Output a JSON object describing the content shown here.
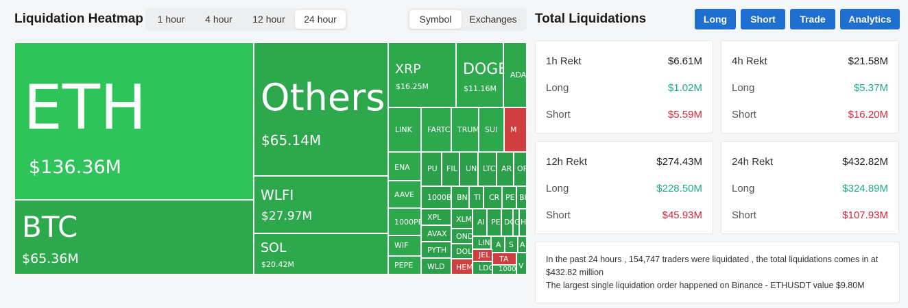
{
  "heatmap": {
    "title": "Liquidation Heatmap",
    "time_options": [
      "1 hour",
      "4 hour",
      "12 hour",
      "24 hour"
    ],
    "time_selected": "24 hour",
    "view_options": [
      "Symbol",
      "Exchanges"
    ],
    "view_selected": "Symbol",
    "colors": {
      "long_dominant": "#2ea84d",
      "long_bright": "#2fc45a",
      "short_dominant": "#cf3f3f"
    },
    "tiles": [
      {
        "symbol": "ETH",
        "amount": "$136.36M"
      },
      {
        "symbol": "BTC",
        "amount": "$65.36M"
      },
      {
        "symbol": "Others",
        "amount": "$65.14M"
      },
      {
        "symbol": "WLFI",
        "amount": "$27.97M"
      },
      {
        "symbol": "SOL",
        "amount": "$20.42M"
      },
      {
        "symbol": "XRP",
        "amount": "$16.25M"
      },
      {
        "symbol": "DOGE",
        "amount": "$11.16M"
      },
      {
        "symbol": "ADA",
        "amount": ""
      },
      {
        "symbol": "LINK",
        "amount": ""
      },
      {
        "symbol": "FARTC",
        "amount": ""
      },
      {
        "symbol": "TRUM",
        "amount": ""
      },
      {
        "symbol": "SUI",
        "amount": ""
      },
      {
        "symbol": "M",
        "amount": ""
      },
      {
        "symbol": "ENA",
        "amount": ""
      },
      {
        "symbol": "PU",
        "amount": ""
      },
      {
        "symbol": "FIL",
        "amount": ""
      },
      {
        "symbol": "UN",
        "amount": ""
      },
      {
        "symbol": "LTC",
        "amount": ""
      },
      {
        "symbol": "AR",
        "amount": ""
      },
      {
        "symbol": "OP",
        "amount": ""
      },
      {
        "symbol": "AAVE",
        "amount": ""
      },
      {
        "symbol": "1000B",
        "amount": ""
      },
      {
        "symbol": "BN",
        "amount": ""
      },
      {
        "symbol": "TI",
        "amount": ""
      },
      {
        "symbol": "CR",
        "amount": ""
      },
      {
        "symbol": "PE",
        "amount": ""
      },
      {
        "symbol": "BI",
        "amount": ""
      },
      {
        "symbol": "1000PE",
        "amount": ""
      },
      {
        "symbol": "XPL",
        "amount": ""
      },
      {
        "symbol": "XLM",
        "amount": ""
      },
      {
        "symbol": "AI",
        "amount": ""
      },
      {
        "symbol": "PE",
        "amount": ""
      },
      {
        "symbol": "DO",
        "amount": ""
      },
      {
        "symbol": "G",
        "amount": ""
      },
      {
        "symbol": "HY",
        "amount": ""
      },
      {
        "symbol": "AVAX",
        "amount": ""
      },
      {
        "symbol": "OND",
        "amount": ""
      },
      {
        "symbol": "WIF",
        "amount": ""
      },
      {
        "symbol": "PYTH",
        "amount": ""
      },
      {
        "symbol": "DOL",
        "amount": ""
      },
      {
        "symbol": "LIN",
        "amount": ""
      },
      {
        "symbol": "A",
        "amount": ""
      },
      {
        "symbol": "S",
        "amount": ""
      },
      {
        "symbol": "A",
        "amount": ""
      },
      {
        "symbol": "JEL",
        "amount": ""
      },
      {
        "symbol": "TA",
        "amount": ""
      },
      {
        "symbol": "PEPE",
        "amount": ""
      },
      {
        "symbol": "WLD",
        "amount": ""
      },
      {
        "symbol": "HEM",
        "amount": ""
      },
      {
        "symbol": "LDO",
        "amount": ""
      },
      {
        "symbol": "1000",
        "amount": ""
      },
      {
        "symbol": "V",
        "amount": ""
      }
    ]
  },
  "totals": {
    "title": "Total Liquidations",
    "buttons": [
      "Long",
      "Short",
      "Trade",
      "Analytics"
    ],
    "button_color": "#1f6fd1",
    "long_color": "#1eaa8a",
    "short_color": "#d4283c",
    "cards": [
      {
        "label": "1h Rekt",
        "total": "$6.61M",
        "long_label": "Long",
        "long": "$1.02M",
        "short_label": "Short",
        "short": "$5.59M"
      },
      {
        "label": "4h Rekt",
        "total": "$21.58M",
        "long_label": "Long",
        "long": "$5.37M",
        "short_label": "Short",
        "short": "$16.20M"
      },
      {
        "label": "12h Rekt",
        "total": "$274.43M",
        "long_label": "Long",
        "long": "$228.50M",
        "short_label": "Short",
        "short": "$45.93M"
      },
      {
        "label": "24h Rekt",
        "total": "$432.82M",
        "long_label": "Long",
        "long": "$324.89M",
        "short_label": "Short",
        "short": "$107.93M"
      }
    ],
    "summary_line1": "In the past 24 hours , 154,747 traders were liquidated , the total liquidations comes in at $432.82 million",
    "summary_line2": "The largest single liquidation order happened on Binance - ETHUSDT value $9.80M"
  }
}
